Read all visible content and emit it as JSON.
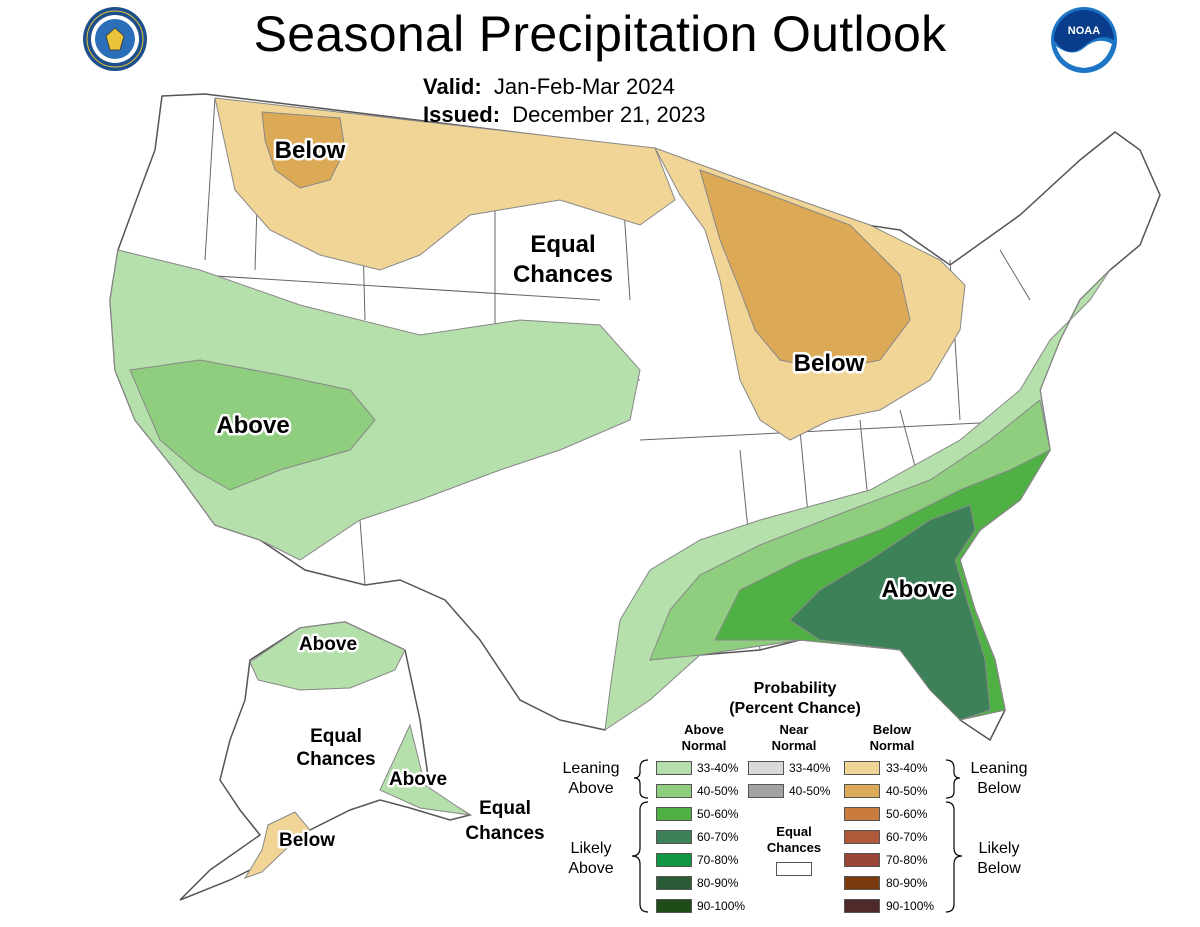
{
  "header": {
    "title": "Seasonal Precipitation Outlook",
    "valid_label": "Valid:",
    "valid_value": "Jan-Feb-Mar 2024",
    "issued_label": "Issued:",
    "issued_value": "December 21, 2023"
  },
  "logos": {
    "left_seal_text": "DEPARTMENT OF COMMERCE UNITED STATES OF AMERICA",
    "right_logo_text": "NOAA"
  },
  "map_labels": {
    "below_nw": "Below",
    "equal_center_1": "Equal",
    "equal_center_2": "Chances",
    "below_greatlakes": "Below",
    "above_sw": "Above",
    "above_se": "Above",
    "ak_above_north": "Above",
    "ak_equal_1": "Equal",
    "ak_equal_2": "Chances",
    "ak_above_south": "Above",
    "ak_below": "Below",
    "ak_equal_se_1": "Equal",
    "ak_equal_se_2": "Chances"
  },
  "legend": {
    "title_1": "Probability",
    "title_2": "(Percent Chance)",
    "col_above_1": "Above",
    "col_above_2": "Normal",
    "col_near_1": "Near",
    "col_near_2": "Normal",
    "col_below_1": "Below",
    "col_below_2": "Normal",
    "leaning_above_1": "Leaning",
    "leaning_above_2": "Above",
    "likely_above_1": "Likely",
    "likely_above_2": "Above",
    "leaning_below_1": "Leaning",
    "leaning_below_2": "Below",
    "likely_below_1": "Likely",
    "likely_below_2": "Below",
    "equal_chances_1": "Equal",
    "equal_chances_2": "Chances",
    "above": [
      {
        "label": "33-40%",
        "color": "#b5dfab"
      },
      {
        "label": "40-50%",
        "color": "#8fce7f"
      },
      {
        "label": "50-60%",
        "color": "#4fb043"
      },
      {
        "label": "60-70%",
        "color": "#3c8158"
      },
      {
        "label": "70-80%",
        "color": "#129540"
      },
      {
        "label": "80-90%",
        "color": "#285b36"
      },
      {
        "label": "90-100%",
        "color": "#1e4b18"
      }
    ],
    "near": [
      {
        "label": "33-40%",
        "color": "#d9d9d9"
      },
      {
        "label": "40-50%",
        "color": "#a3a3a3"
      }
    ],
    "below": [
      {
        "label": "33-40%",
        "color": "#f1d596"
      },
      {
        "label": "40-50%",
        "color": "#dca956"
      },
      {
        "label": "50-60%",
        "color": "#c97c3e"
      },
      {
        "label": "60-70%",
        "color": "#ae5a3b"
      },
      {
        "label": "70-80%",
        "color": "#984535"
      },
      {
        "label": "80-90%",
        "color": "#7a3a0e"
      },
      {
        "label": "90-100%",
        "color": "#4e2a2b"
      }
    ]
  }
}
